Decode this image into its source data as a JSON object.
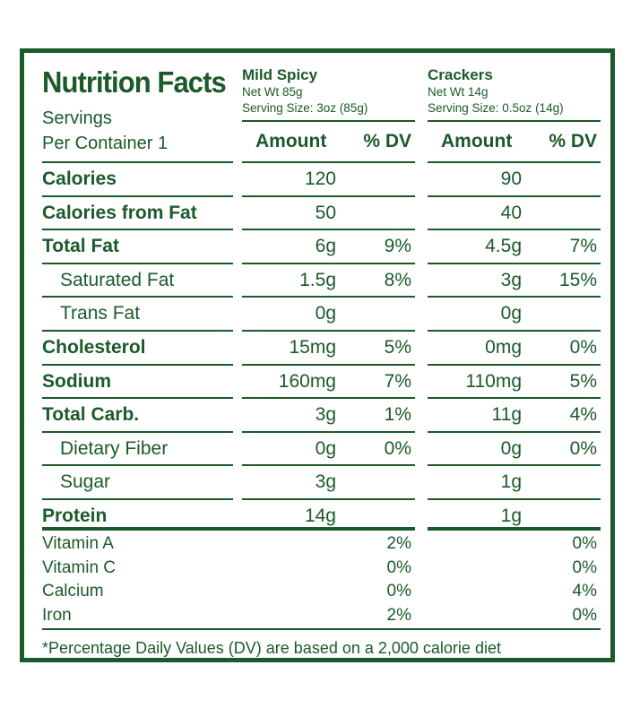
{
  "title": "Nutrition Facts",
  "servings": {
    "line1": "Servings",
    "line2": "Per Container 1"
  },
  "products": [
    {
      "name": "Mild Spicy",
      "net_wt": "Net Wt 85g",
      "serving_size": "Serving Size: 3oz (85g)"
    },
    {
      "name": "Crackers",
      "net_wt": "Net Wt 14g",
      "serving_size": "Serving Size: 0.5oz (14g)"
    }
  ],
  "headers": {
    "amount": "Amount",
    "dv": "% DV"
  },
  "rows": [
    {
      "label": "Calories",
      "bold": true,
      "indent": false,
      "p1": {
        "amount": "120",
        "dv": ""
      },
      "p2": {
        "amount": "90",
        "dv": ""
      }
    },
    {
      "label": "Calories from Fat",
      "bold": true,
      "indent": false,
      "p1": {
        "amount": "50",
        "dv": ""
      },
      "p2": {
        "amount": "40",
        "dv": ""
      }
    },
    {
      "label": "Total Fat",
      "bold": true,
      "indent": false,
      "p1": {
        "amount": "6g",
        "dv": "9%"
      },
      "p2": {
        "amount": "4.5g",
        "dv": "7%"
      }
    },
    {
      "label": "Saturated Fat",
      "bold": false,
      "indent": true,
      "p1": {
        "amount": "1.5g",
        "dv": "8%"
      },
      "p2": {
        "amount": "3g",
        "dv": "15%"
      }
    },
    {
      "label": "Trans Fat",
      "bold": false,
      "indent": true,
      "p1": {
        "amount": "0g",
        "dv": ""
      },
      "p2": {
        "amount": "0g",
        "dv": ""
      }
    },
    {
      "label": "Cholesterol",
      "bold": true,
      "indent": false,
      "p1": {
        "amount": "15mg",
        "dv": "5%"
      },
      "p2": {
        "amount": "0mg",
        "dv": "0%"
      }
    },
    {
      "label": "Sodium",
      "bold": true,
      "indent": false,
      "p1": {
        "amount": "160mg",
        "dv": "7%"
      },
      "p2": {
        "amount": "110mg",
        "dv": "5%"
      }
    },
    {
      "label": "Total Carb.",
      "bold": true,
      "indent": false,
      "p1": {
        "amount": "3g",
        "dv": "1%"
      },
      "p2": {
        "amount": "11g",
        "dv": "4%"
      }
    },
    {
      "label": "Dietary Fiber",
      "bold": false,
      "indent": true,
      "p1": {
        "amount": "0g",
        "dv": "0%"
      },
      "p2": {
        "amount": "0g",
        "dv": "0%"
      }
    },
    {
      "label": "Sugar",
      "bold": false,
      "indent": true,
      "p1": {
        "amount": "3g",
        "dv": ""
      },
      "p2": {
        "amount": "1g",
        "dv": ""
      }
    },
    {
      "label": "Protein",
      "bold": true,
      "indent": false,
      "p1": {
        "amount": "14g",
        "dv": ""
      },
      "p2": {
        "amount": "1g",
        "dv": ""
      }
    }
  ],
  "vitamins": [
    {
      "label": "Vitamin A",
      "p1": "2%",
      "p2": "0%"
    },
    {
      "label": "Vitamin C",
      "p1": "0%",
      "p2": "0%"
    },
    {
      "label": "Calcium",
      "p1": "0%",
      "p2": "4%"
    },
    {
      "label": "Iron",
      "p1": "2%",
      "p2": "0%"
    }
  ],
  "footnote": "*Percentage Daily Values (DV) are based on a 2,000 calorie diet",
  "colors": {
    "ink": "#1b5a2b",
    "background": "#ffffff"
  }
}
